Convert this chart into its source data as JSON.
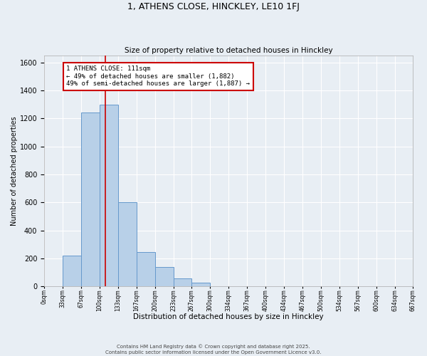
{
  "title": "1, ATHENS CLOSE, HINCKLEY, LE10 1FJ",
  "subtitle": "Size of property relative to detached houses in Hinckley",
  "xlabel": "Distribution of detached houses by size in Hinckley",
  "ylabel": "Number of detached properties",
  "bin_labels": [
    "0sqm",
    "33sqm",
    "67sqm",
    "100sqm",
    "133sqm",
    "167sqm",
    "200sqm",
    "233sqm",
    "267sqm",
    "300sqm",
    "334sqm",
    "367sqm",
    "400sqm",
    "434sqm",
    "467sqm",
    "500sqm",
    "534sqm",
    "567sqm",
    "600sqm",
    "634sqm",
    "667sqm"
  ],
  "bar_values": [
    0,
    220,
    1240,
    1300,
    600,
    245,
    140,
    55,
    25,
    0,
    0,
    0,
    0,
    0,
    0,
    0,
    0,
    0,
    0,
    0
  ],
  "bar_color": "#b8d0e8",
  "bar_edge_color": "#6699cc",
  "ylim": [
    0,
    1650
  ],
  "yticks": [
    0,
    200,
    400,
    600,
    800,
    1000,
    1200,
    1400,
    1600
  ],
  "property_line_x": 3.33,
  "property_line_color": "#cc0000",
  "annotation_title": "1 ATHENS CLOSE: 111sqm",
  "annotation_line1": "← 49% of detached houses are smaller (1,882)",
  "annotation_line2": "49% of semi-detached houses are larger (1,887) →",
  "annotation_box_color": "#cc0000",
  "footer1": "Contains HM Land Registry data © Crown copyright and database right 2025.",
  "footer2": "Contains public sector information licensed under the Open Government Licence v3.0.",
  "background_color": "#e8eef4",
  "grid_color": "#ffffff",
  "n_bins": 20
}
